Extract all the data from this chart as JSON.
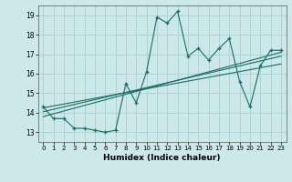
{
  "xlabel": "Humidex (Indice chaleur)",
  "ylabel": "",
  "bg_color": "#cce8e8",
  "grid_color": "#aad4d4",
  "line_color": "#1a6b6b",
  "xlim": [
    -0.5,
    23.5
  ],
  "ylim": [
    12.5,
    19.5
  ],
  "main_x": [
    0,
    1,
    2,
    3,
    4,
    5,
    6,
    7,
    8,
    9,
    10,
    11,
    12,
    13,
    14,
    15,
    16,
    17,
    18,
    19,
    20,
    21,
    22,
    23
  ],
  "main_y": [
    14.3,
    13.7,
    13.7,
    13.2,
    13.2,
    13.1,
    13.0,
    13.1,
    15.5,
    14.5,
    16.1,
    18.9,
    18.6,
    19.2,
    16.9,
    17.3,
    16.7,
    17.3,
    17.8,
    15.6,
    14.3,
    16.4,
    17.2,
    17.2
  ],
  "line2_x": [
    0,
    23
  ],
  "line2_y": [
    13.8,
    17.1
  ],
  "line3_x": [
    0,
    23
  ],
  "line3_y": [
    14.05,
    16.9
  ],
  "line4_x": [
    0,
    23
  ],
  "line4_y": [
    14.25,
    16.5
  ]
}
